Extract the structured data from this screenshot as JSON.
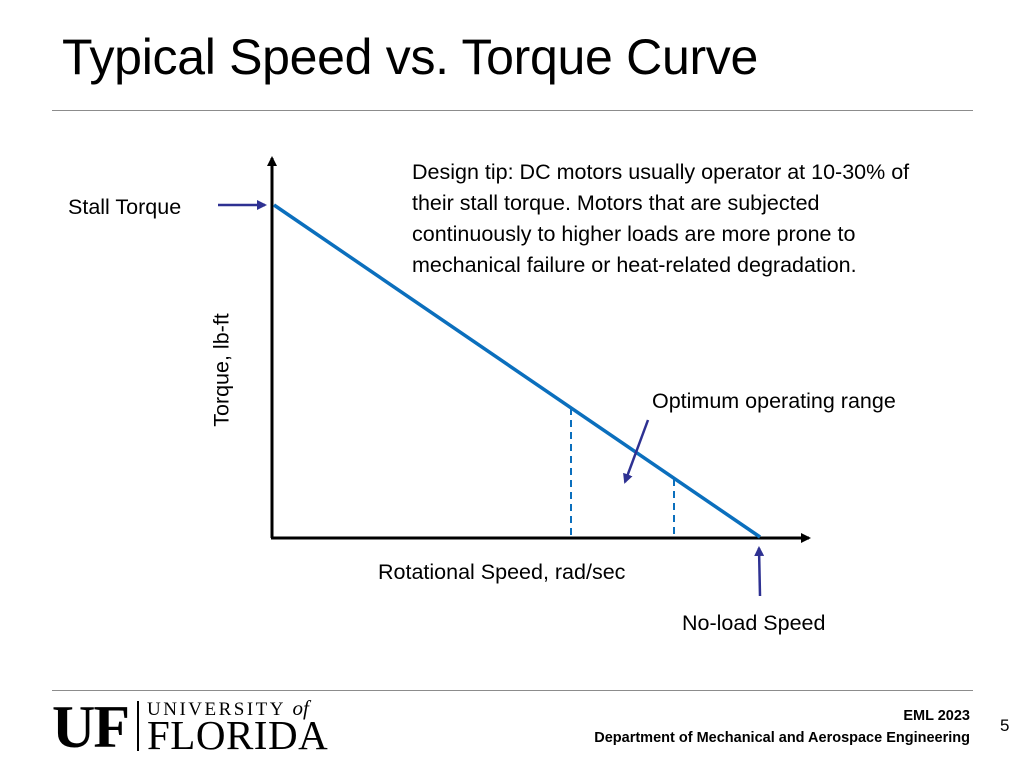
{
  "slide": {
    "title": "Typical Speed vs. Torque Curve",
    "page_number": "5"
  },
  "diagram": {
    "y_axis_label": "Torque, lb-ft",
    "x_axis_label": "Rotational Speed, rad/sec",
    "stall_torque_label": "Stall Torque",
    "no_load_speed_label": "No-load Speed",
    "optimum_range_label": "Optimum operating range",
    "design_tip_lines": [
      "Design tip:  DC motors usually operator at 10-30% of",
      "their stall torque.  Motors that are subjected",
      "continuously to higher loads are more prone to",
      "mechanical failure or heat-related degradation."
    ],
    "colors": {
      "curve": "#0b6fbd",
      "arrows": "#2e3192",
      "axes": "#000000"
    }
  },
  "logo": {
    "uf": "UF",
    "university": "UNIVERSITY",
    "of": "of",
    "florida": "FLORIDA"
  },
  "footer": {
    "course": "EML 2023",
    "department": "Department of Mechanical and Aerospace Engineering"
  }
}
